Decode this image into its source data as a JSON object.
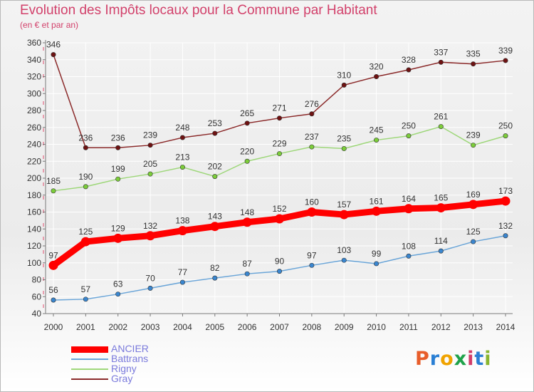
{
  "title": "Evolution des Impôts locaux pour la Commune par Habitant",
  "subtitle": "(en € et par an)",
  "logo": {
    "text": "Proxiti",
    "letter_colors": [
      "#e85d2a",
      "#2a7fd4",
      "#f0a300",
      "#1fa24a",
      "#d23d6a",
      "#2a7fd4",
      "#8ab630"
    ]
  },
  "colors": {
    "grid": "#ffffff",
    "axis": "#7a7a7a",
    "tick_text": "#333333",
    "title": "#d2416b",
    "legend_text": "#7a7adc"
  },
  "chart_data": {
    "type": "line",
    "title": "Evolution des Impôts locaux pour la Commune par Habitant",
    "subtitle": "(en € et par an)",
    "xlabel": "",
    "ylabel": "",
    "x": [
      "2000",
      "2001",
      "2002",
      "2003",
      "2004",
      "2005",
      "2006",
      "2007",
      "2008",
      "2009",
      "2010",
      "2011",
      "2012",
      "2013",
      "2014"
    ],
    "ylim": [
      40,
      360
    ],
    "yticks": [
      40,
      60,
      80,
      100,
      120,
      140,
      160,
      180,
      200,
      220,
      240,
      260,
      280,
      300,
      320,
      340,
      360
    ],
    "grid": true,
    "legend_position": "bottom-left",
    "series": [
      {
        "name": "ANCIER",
        "values": [
          97,
          125,
          129,
          132,
          138,
          143,
          148,
          152,
          160,
          157,
          161,
          164,
          165,
          169,
          173
        ],
        "color": "#ff0000",
        "marker_fill": "#ff0000",
        "emphasis": true
      },
      {
        "name": "Battrans",
        "values": [
          56,
          57,
          63,
          70,
          77,
          82,
          87,
          90,
          97,
          103,
          99,
          108,
          114,
          125,
          132
        ],
        "color": "#6aa5d8",
        "marker_fill": "#3a86cf",
        "emphasis": false
      },
      {
        "name": "Rigny",
        "values": [
          185,
          190,
          199,
          205,
          213,
          202,
          220,
          229,
          237,
          235,
          245,
          250,
          261,
          239,
          250
        ],
        "color": "#9ed77a",
        "marker_fill": "#7ccd3a",
        "emphasis": false
      },
      {
        "name": "Gray",
        "values": [
          346,
          236,
          236,
          239,
          248,
          253,
          265,
          271,
          276,
          310,
          320,
          328,
          337,
          335,
          339
        ],
        "color": "#8b2a2a",
        "marker_fill": "#6e1212",
        "emphasis": false
      }
    ]
  }
}
